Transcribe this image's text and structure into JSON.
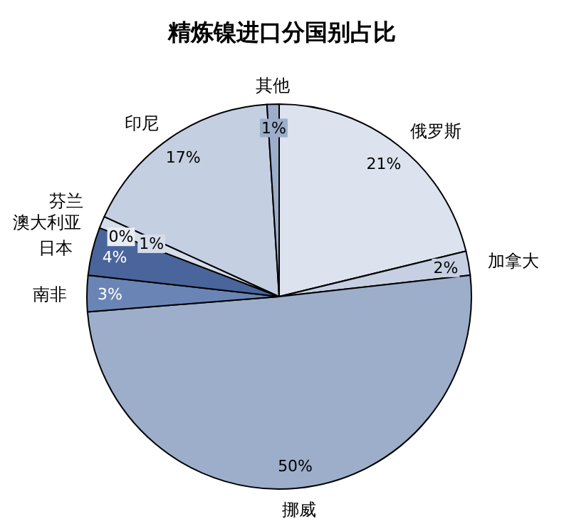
{
  "chart_data": {
    "type": "pie",
    "title": "精炼镍进口分国别占比",
    "categories": [
      "俄罗斯",
      "加拿大",
      "挪威",
      "南非",
      "日本",
      "澳大利亚",
      "芬兰",
      "印尼",
      "其他"
    ],
    "values": [
      21,
      2,
      50,
      3,
      4,
      0,
      1,
      17,
      1
    ],
    "colors": [
      "#dce3ee",
      "#c6d0e2",
      "#9daecb",
      "#6a85b5",
      "#4a659b",
      "#e8ecf3",
      "#d5dcea",
      "#c4cfe2",
      "#9daecb"
    ],
    "value_labels": [
      "21%",
      "2%",
      "50%",
      "3%",
      "4%",
      "0%",
      "1%",
      "17%",
      "1%"
    ]
  }
}
